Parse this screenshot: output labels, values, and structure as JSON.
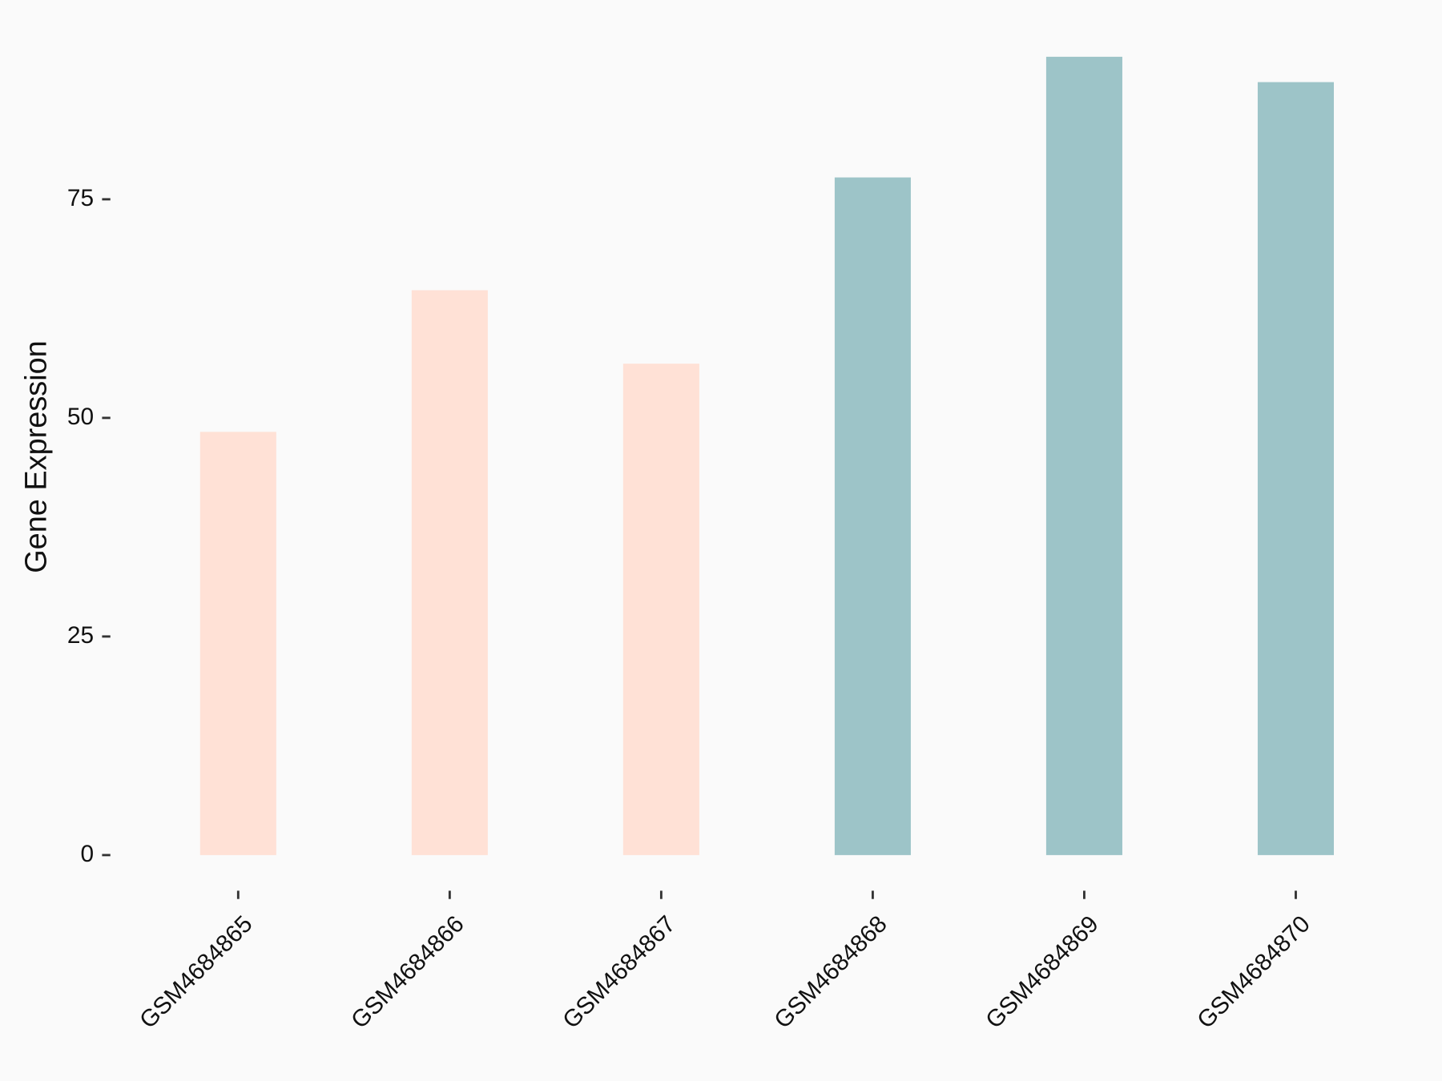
{
  "chart_data": {
    "type": "bar",
    "y_label": "Gene Expression",
    "categories": [
      "GSM4684865",
      "GSM4684866",
      "GSM4684867",
      "GSM4684868",
      "GSM4684869",
      "GSM4684870"
    ],
    "values": [
      48.4,
      64.6,
      56.2,
      77.5,
      91.3,
      88.4
    ],
    "colors": [
      "#ffe1d6",
      "#ffe1d6",
      "#ffe1d6",
      "#9dc4c8",
      "#9dc4c8",
      "#9dc4c8"
    ],
    "ylim": [
      -4.6,
      95.9
    ],
    "yticks": [
      0,
      25,
      50,
      75
    ]
  }
}
